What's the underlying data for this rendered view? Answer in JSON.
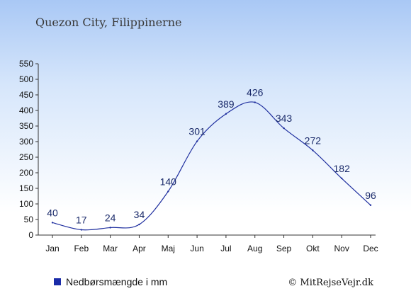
{
  "chart_data": {
    "type": "line",
    "title": "Quezon City, Filippinerne",
    "categories": [
      "Jan",
      "Feb",
      "Mar",
      "Apr",
      "Maj",
      "Jun",
      "Jul",
      "Aug",
      "Sep",
      "Okt",
      "Nov",
      "Dec"
    ],
    "series": [
      {
        "name": "Nedbørsmængde i mm",
        "values": [
          40,
          17,
          24,
          34,
          140,
          301,
          389,
          426,
          343,
          272,
          182,
          96
        ],
        "color": "#1f2f9f"
      }
    ],
    "y_ticks": [
      "0",
      "50",
      "100",
      "150",
      "200",
      "250",
      "300",
      "350",
      "400",
      "450",
      "500",
      "550"
    ],
    "ylim": [
      0,
      550
    ],
    "grid": false,
    "legend": {
      "label": "Nedbørsmængde i mm",
      "placement": "bottom-left",
      "marker_color": "#1a2ba8"
    },
    "credit": "© MitRejseVejr.dk"
  }
}
